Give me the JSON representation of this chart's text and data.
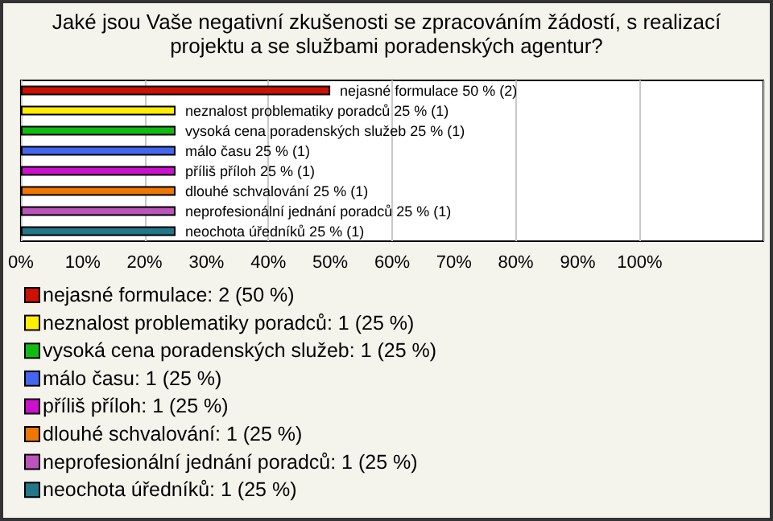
{
  "chart_data": {
    "type": "bar",
    "orientation": "horizontal",
    "title": "Jaké jsou Vaše negativní zkušenosti se zpracováním žádostí, s realizací projektu a se službami poradenských agentur?",
    "categories": [
      null,
      null,
      null,
      null,
      null,
      null,
      null,
      null
    ],
    "series": [
      {
        "name": "nejasné formulace: 2 (50 %)",
        "color": "#cc1100",
        "values": [
          50,
          null,
          null,
          null,
          null,
          null,
          null,
          null
        ],
        "value_labels": [
          "nejasné formulace 50 % (2)",
          null,
          null,
          null,
          null,
          null,
          null,
          null
        ]
      },
      {
        "name": "neznalost problematiky poradců: 1 (25 %)",
        "color": "#ffee00",
        "values": [
          null,
          25,
          null,
          null,
          null,
          null,
          null,
          null
        ],
        "value_labels": [
          null,
          "neznalost problematiky poradců 25 % (1)",
          null,
          null,
          null,
          null,
          null,
          null
        ]
      },
      {
        "name": "vysoká cena poradenských služeb: 1 (25 %)",
        "color": "#11bb11",
        "values": [
          null,
          null,
          25,
          null,
          null,
          null,
          null,
          null
        ],
        "value_labels": [
          null,
          null,
          "vysoká cena poradenských služeb 25 % (1)",
          null,
          null,
          null,
          null,
          null
        ]
      },
      {
        "name": "málo času: 1 (25 %)",
        "color": "#4466ee",
        "values": [
          null,
          null,
          null,
          25,
          null,
          null,
          null,
          null
        ],
        "value_labels": [
          null,
          null,
          null,
          "málo času 25 % (1)",
          null,
          null,
          null,
          null
        ]
      },
      {
        "name": "příliš příloh: 1 (25 %)",
        "color": "#cc11cc",
        "values": [
          null,
          null,
          null,
          null,
          25,
          null,
          null,
          null
        ],
        "value_labels": [
          null,
          null,
          null,
          null,
          "příliš příloh 25 % (1)",
          null,
          null,
          null
        ]
      },
      {
        "name": "dlouhé schvalování: 1 (25 %)",
        "color": "#ee7700",
        "values": [
          null,
          null,
          null,
          null,
          null,
          25,
          null,
          null
        ],
        "value_labels": [
          null,
          null,
          null,
          null,
          null,
          "dlouhé schvalování 25 % (1)",
          null,
          null
        ]
      },
      {
        "name": "neprofesionální jednání poradců: 1 (25 %)",
        "color": "#bb55bb",
        "values": [
          null,
          null,
          null,
          null,
          null,
          null,
          25,
          null
        ],
        "value_labels": [
          null,
          null,
          null,
          null,
          null,
          null,
          "neprofesionální jednání poradců 25 % (1)",
          null
        ]
      },
      {
        "name": "neochota úředníků: 1 (25 %)",
        "color": "#227788",
        "values": [
          null,
          null,
          null,
          null,
          null,
          null,
          null,
          25
        ],
        "value_labels": [
          null,
          null,
          null,
          null,
          null,
          null,
          null,
          "neochota úředníků 25 % (1)"
        ]
      }
    ],
    "legend": "bottom",
    "tick_labels": "x",
    "grid": "x",
    "xlim": [
      0,
      120
    ],
    "xticks": [
      {
        "value": 0,
        "label": "0%"
      },
      {
        "value": 10,
        "label": "10%"
      },
      {
        "value": 20,
        "label": "20%"
      },
      {
        "value": 30,
        "label": "30%"
      },
      {
        "value": 40,
        "label": "40%"
      },
      {
        "value": 50,
        "label": "50%"
      },
      {
        "value": 60,
        "label": "60%"
      },
      {
        "value": 70,
        "label": "70%"
      },
      {
        "value": 80,
        "label": "80%"
      },
      {
        "value": 90,
        "label": "90%"
      },
      {
        "value": 100,
        "label": "100%"
      }
    ]
  }
}
